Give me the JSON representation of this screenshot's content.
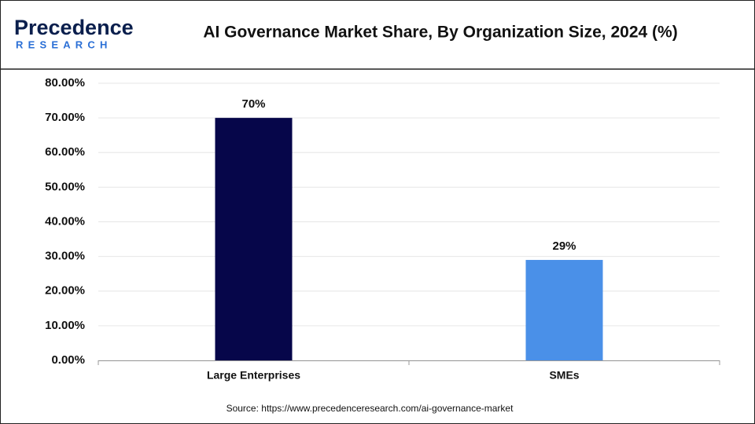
{
  "logo": {
    "name": "Precedence",
    "tagline": "RESEARCH"
  },
  "chart_data": {
    "type": "bar",
    "title": "AI Governance Market Share, By Organization Size, 2024 (%)",
    "categories": [
      "Large Enterprises",
      "SMEs"
    ],
    "values": [
      70,
      29
    ],
    "value_labels": [
      "70%",
      "29%"
    ],
    "colors": [
      "#06064a",
      "#4a90e8"
    ],
    "ylim": [
      0,
      80
    ],
    "yticks": [
      {
        "value": 0,
        "label": "0.00%"
      },
      {
        "value": 10,
        "label": "10.00%"
      },
      {
        "value": 20,
        "label": "20.00%"
      },
      {
        "value": 30,
        "label": "30.00%"
      },
      {
        "value": 40,
        "label": "40.00%"
      },
      {
        "value": 50,
        "label": "50.00%"
      },
      {
        "value": 60,
        "label": "60.00%"
      },
      {
        "value": 70,
        "label": "70.00%"
      },
      {
        "value": 80,
        "label": "80.00%"
      }
    ],
    "grid": true,
    "source": "Source: https://www.precedenceresearch.com/ai-governance-market"
  }
}
